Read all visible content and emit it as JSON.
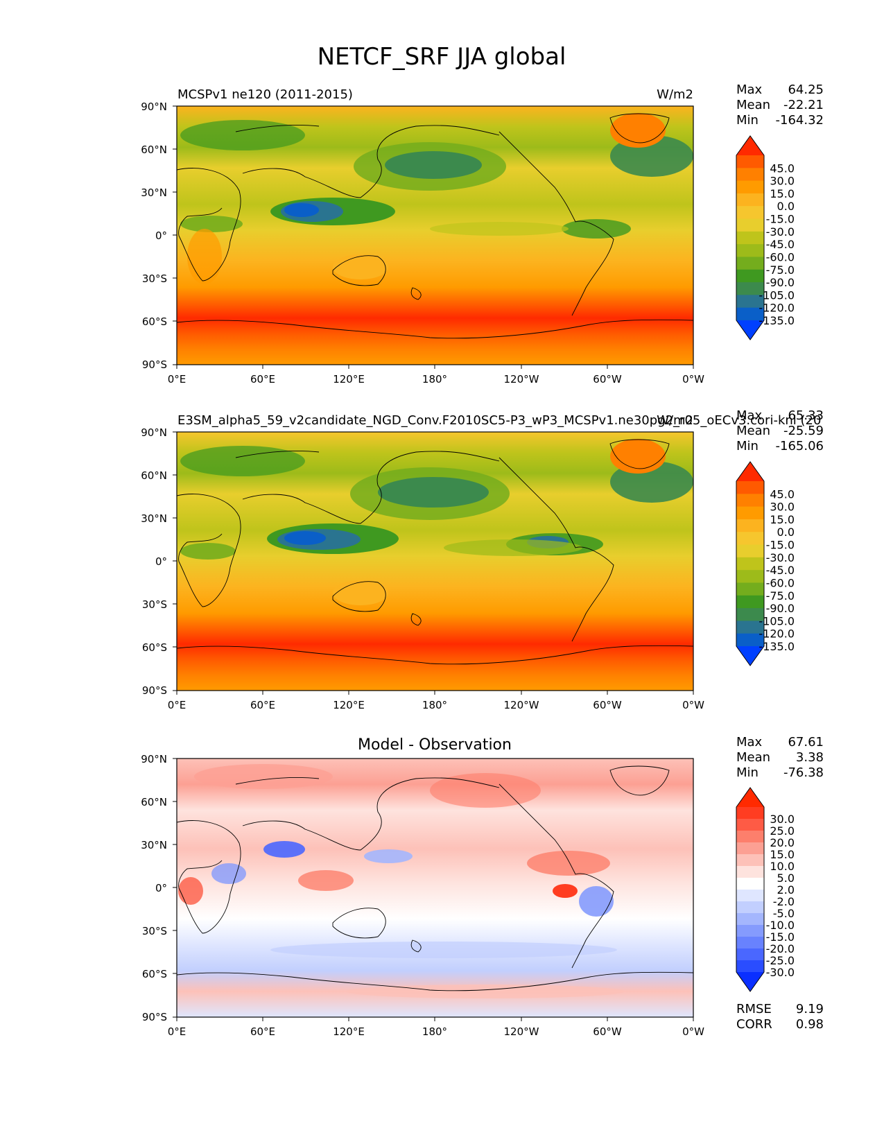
{
  "figure": {
    "title": "NETCF_SRF JJA global"
  },
  "chart_data": [
    {
      "type": "heatmap",
      "name": "test",
      "title_left": "MCSPv1 ne120 (2011-2015)",
      "title_right": "W/m2",
      "title_center": "",
      "xticks": [
        "0°E",
        "60°E",
        "120°E",
        "180°",
        "120°W",
        "60°W",
        "0°W"
      ],
      "yticks": [
        "90°N",
        "60°N",
        "30°N",
        "0°",
        "30°S",
        "60°S",
        "90°S"
      ],
      "stats": [
        {
          "label": "Max",
          "value": "64.25"
        },
        {
          "label": "Mean",
          "value": "-22.21"
        },
        {
          "label": "Min",
          "value": "-164.32"
        }
      ],
      "colorbar": {
        "levels": [
          "45.0",
          "30.0",
          "15.0",
          "0.0",
          "-15.0",
          "-30.0",
          "-45.0",
          "-60.0",
          "-75.0",
          "-90.0",
          "-105.0",
          "-120.0",
          "-135.0"
        ],
        "colors": [
          "#ff2a00",
          "#ff5a00",
          "#ff8000",
          "#ff9b00",
          "#fcb31f",
          "#f6c62e",
          "#e8ce2d",
          "#bfc41b",
          "#9dbb1a",
          "#74ad1d",
          "#3f9920",
          "#3c8a4d",
          "#2a7490",
          "#0a5fc8",
          "#0040ff"
        ]
      },
      "extra_stats": []
    },
    {
      "type": "heatmap",
      "name": "reference",
      "title_left": "E3SM_alpha5_59_v2candidate_NGD_Conv.F2010SC5-P3_wP3_MCSPv1.ne30pg2_r05_oECv3.cori-knl (20",
      "title_right": "W/m2",
      "title_center": "",
      "xticks": [
        "0°E",
        "60°E",
        "120°E",
        "180°",
        "120°W",
        "60°W",
        "0°W"
      ],
      "yticks": [
        "90°N",
        "60°N",
        "30°N",
        "0°",
        "30°S",
        "60°S",
        "90°S"
      ],
      "stats": [
        {
          "label": "Max",
          "value": "65.33"
        },
        {
          "label": "Mean",
          "value": "-25.59"
        },
        {
          "label": "Min",
          "value": "-165.06"
        }
      ],
      "colorbar": {
        "levels": [
          "45.0",
          "30.0",
          "15.0",
          "0.0",
          "-15.0",
          "-30.0",
          "-45.0",
          "-60.0",
          "-75.0",
          "-90.0",
          "-105.0",
          "-120.0",
          "-135.0"
        ],
        "colors": [
          "#ff2a00",
          "#ff5a00",
          "#ff8000",
          "#ff9b00",
          "#fcb31f",
          "#f6c62e",
          "#e8ce2d",
          "#bfc41b",
          "#9dbb1a",
          "#74ad1d",
          "#3f9920",
          "#3c8a4d",
          "#2a7490",
          "#0a5fc8",
          "#0040ff"
        ]
      },
      "extra_stats": []
    },
    {
      "type": "heatmap",
      "name": "diff",
      "title_left": "",
      "title_right": "",
      "title_center": "Model - Observation",
      "xticks": [
        "0°E",
        "60°E",
        "120°E",
        "180°",
        "120°W",
        "60°W",
        "0°W"
      ],
      "yticks": [
        "90°N",
        "60°N",
        "30°N",
        "0°",
        "30°S",
        "60°S",
        "90°S"
      ],
      "stats": [
        {
          "label": "Max",
          "value": "67.61"
        },
        {
          "label": "Mean",
          "value": "3.38"
        },
        {
          "label": "Min",
          "value": "-76.38"
        }
      ],
      "colorbar": {
        "levels": [
          "30.0",
          "25.0",
          "20.0",
          "15.0",
          "10.0",
          "5.0",
          "2.0",
          "-2.0",
          "-5.0",
          "-10.0",
          "-15.0",
          "-20.0",
          "-25.0",
          "-30.0"
        ],
        "colors": [
          "#ff2a00",
          "#ff3d21",
          "#fe5b45",
          "#fd7f6c",
          "#fca093",
          "#fdc1b8",
          "#fee3de",
          "#ffffff",
          "#dfe6ff",
          "#c2cffe",
          "#a4b6fd",
          "#859bfd",
          "#6882fe",
          "#4a67ff",
          "#2a4dff",
          "#0a2fff"
        ]
      },
      "extra_stats": [
        {
          "label": "RMSE",
          "value": "9.19"
        },
        {
          "label": "CORR",
          "value": "0.98"
        }
      ]
    }
  ]
}
